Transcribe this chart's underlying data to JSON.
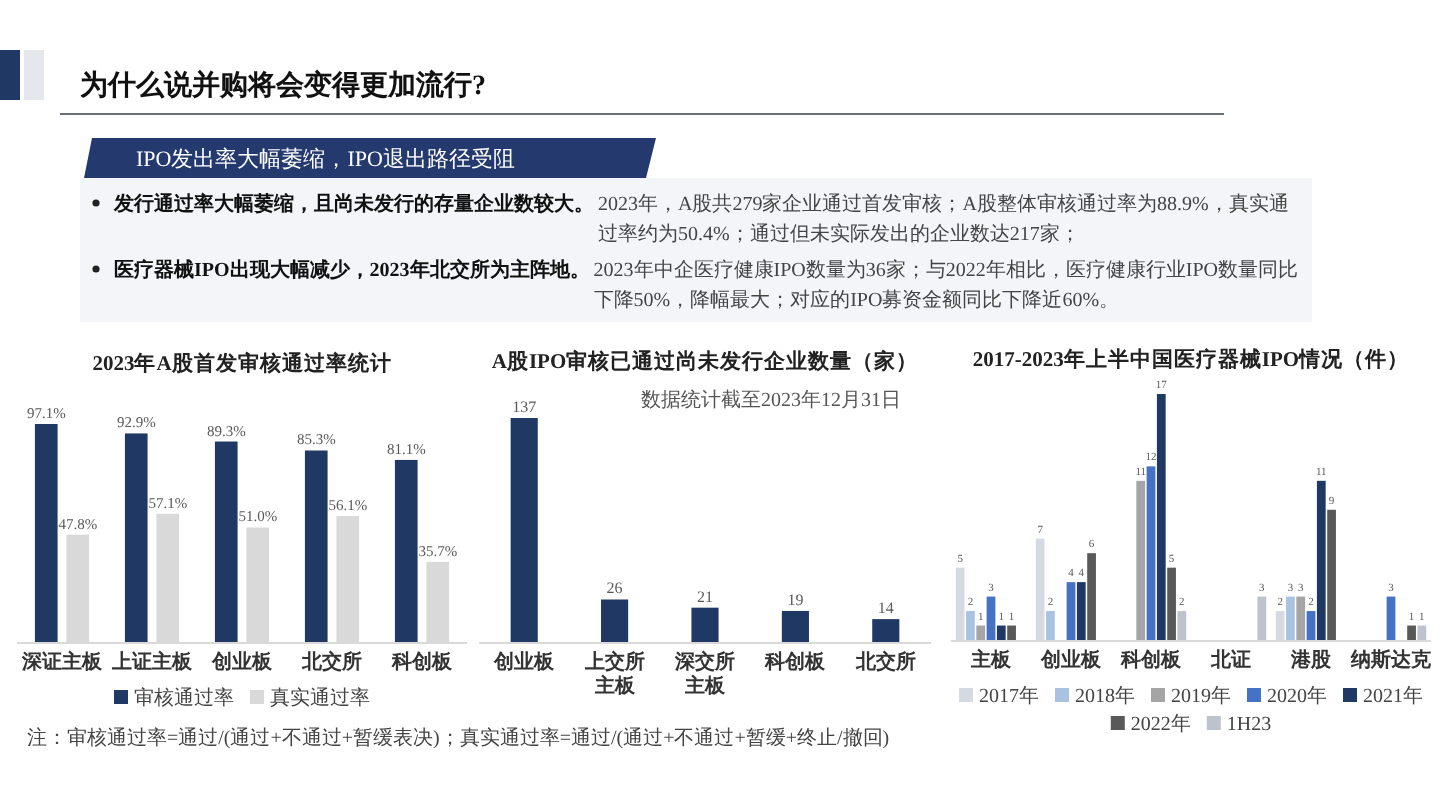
{
  "chart_data": [
    {
      "type": "other",
      "title": "为什么说并购将会变得更加流行?",
      "subtitle": "IPO发出率大幅萎缩，IPO退出路径受阻",
      "annotations": [
        "发行通过率大幅萎缩，且尚未发行的存量企业数较大。",
        "2023年，A股共279家企业通过首发审核；A股整体审核通过率为88.9%，真实通过率约为50.4%；通过但未实际发出的企业数达217家；",
        "医疗器械IPO出现大幅减少，2023年北交所为主阵地。",
        "2023年中企医疗健康IPO数量为36家；与2022年相比，医疗健康行业IPO数量同比下降50%，降幅最大；对应的IPO募资金额同比下降近60%。"
      ]
    },
    {
      "type": "bar",
      "title": "2023年A股首发审核通过率统计",
      "categories": [
        "深证主板",
        "上证主板",
        "创业板",
        "北交所",
        "科创板"
      ],
      "series": [
        {
          "name": "审核通过率",
          "color": "#203864",
          "values": [
            97.1,
            92.9,
            89.3,
            85.3,
            81.1
          ],
          "value_labels": [
            "97.1%",
            "92.9%",
            "89.3%",
            "85.3%",
            "81.1%"
          ]
        },
        {
          "name": "真实通过率",
          "color": "#d9d9d9",
          "values": [
            47.8,
            57.1,
            51.0,
            56.1,
            35.7
          ],
          "value_labels": [
            "47.8%",
            "57.1%",
            "51.0%",
            "56.1%",
            "35.7%"
          ]
        }
      ],
      "legend": "bottom",
      "annotations": [
        "注：审核通过率=通过/(通过+不通过+暂缓表决)；真实通过率=通过/(通过+不通过+暂缓+终止/撤回)"
      ]
    },
    {
      "type": "bar",
      "title": "A股IPO审核已通过尚未发行企业数量（家）",
      "subtitle": "数据统计截至2023年12月31日",
      "categories": [
        "创业板",
        "上交所主板",
        "深交所主板",
        "科创板",
        "北交所"
      ],
      "values": [
        137,
        26,
        21,
        19,
        14
      ],
      "color": "#203864",
      "data_labels": true
    },
    {
      "type": "bar",
      "title": "2017-2023年上半中国医疗器械IPO情况（件）",
      "categories": [
        "主板",
        "创业板",
        "科创板",
        "北证",
        "港股",
        "纳斯达克"
      ],
      "series": [
        {
          "name": "2017年",
          "color": "#d5dae2",
          "values": [
            5,
            7,
            null,
            null,
            2,
            null
          ]
        },
        {
          "name": "2018年",
          "color": "#a9c2df",
          "values": [
            2,
            2,
            null,
            null,
            3,
            null
          ]
        },
        {
          "name": "2019年",
          "color": "#a5a5a5",
          "values": [
            1,
            null,
            11,
            null,
            3,
            null
          ]
        },
        {
          "name": "2020年",
          "color": "#4472c4",
          "values": [
            3,
            4,
            12,
            null,
            2,
            3
          ]
        },
        {
          "name": "2021年",
          "color": "#1f3864",
          "values": [
            1,
            4,
            17,
            null,
            11,
            null
          ]
        },
        {
          "name": "2022年",
          "color": "#595959",
          "values": [
            1,
            6,
            5,
            null,
            9,
            1
          ]
        },
        {
          "name": "1H23",
          "color": "#bcc3cc",
          "values": [
            null,
            null,
            2,
            3,
            null,
            1
          ]
        }
      ],
      "data_labels": true,
      "legend": "bottom"
    }
  ]
}
